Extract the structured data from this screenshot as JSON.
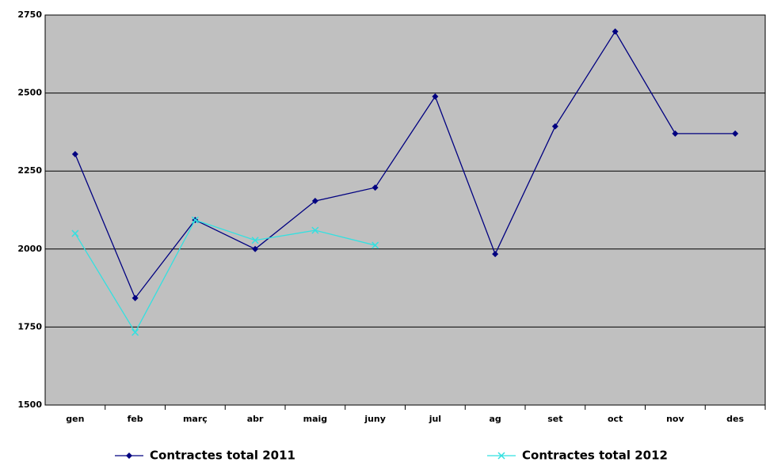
{
  "chart_data": {
    "type": "line",
    "categories": [
      "gen",
      "feb",
      "març",
      "abr",
      "maig",
      "juny",
      "jul",
      "ag",
      "set",
      "oct",
      "nov",
      "des"
    ],
    "series": [
      {
        "name": "Contractes total 2011",
        "color": "#000080",
        "marker": "diamond",
        "values": [
          2304,
          1843,
          2093,
          2000,
          2154,
          2197,
          2489,
          1984,
          2393,
          2697,
          2370,
          2370
        ]
      },
      {
        "name": "Contractes total 2012",
        "color": "#33e0e0",
        "marker": "x",
        "values": [
          2050,
          1733,
          2093,
          2028,
          2060,
          2012,
          null,
          null,
          null,
          null,
          null,
          null
        ]
      }
    ],
    "ylim": [
      1500,
      2750
    ],
    "yticks": [
      1500,
      1750,
      2000,
      2250,
      2500,
      2750
    ],
    "grid": true,
    "background": "#c0c0c0",
    "legend": "bottom"
  }
}
